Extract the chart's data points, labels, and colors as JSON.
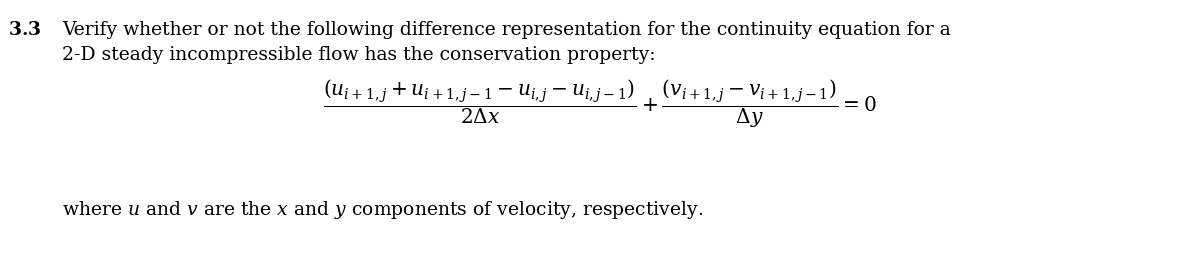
{
  "background_color": "#ffffff",
  "figsize": [
    12.0,
    2.59
  ],
  "dpi": 100,
  "text_fontsize": 13.5,
  "eq_fontsize": 14.5,
  "footer_fontsize": 13.5,
  "bold_label": "3.3",
  "line1": "Verify whether or not the following difference representation for the continuity equation for a",
  "line2": "2-D steady incompressible flow has the conservation property:",
  "footer_pre": "where ",
  "footer_post": " and ",
  "footer_end": " are the ",
  "footer_full": "where $u$ and $v$ are the $x$ and $y$ components of velocity, respectively."
}
